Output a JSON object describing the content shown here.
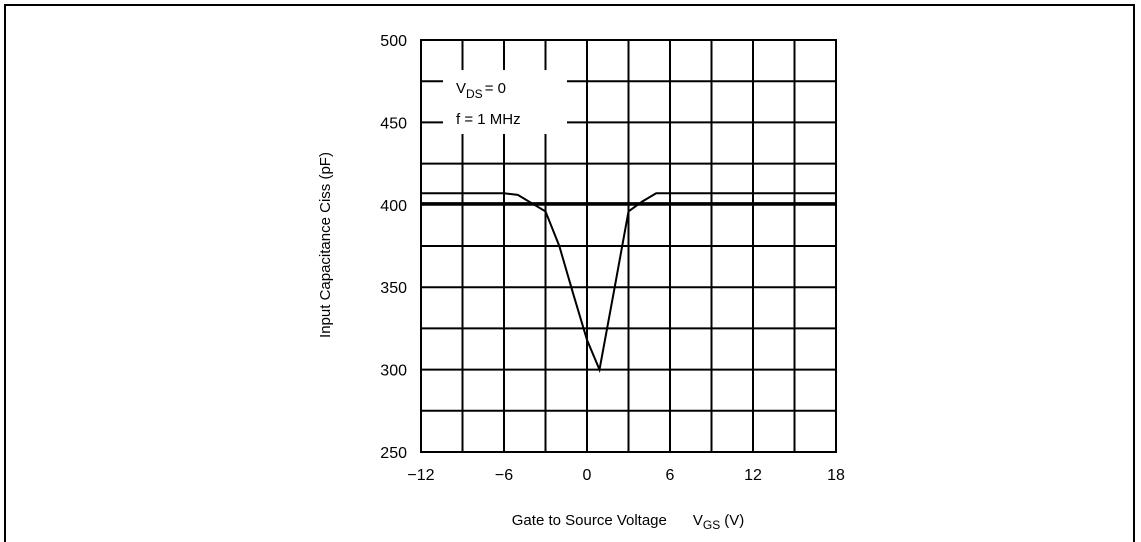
{
  "chart_data": {
    "type": "line",
    "title": "",
    "xlabel": "Gate to Source Voltage",
    "xlabel_symbol": "V",
    "xlabel_subscript": "GS",
    "xlabel_unit": "(V)",
    "ylabel": "Input Capacitance  Ciss (pF)",
    "xlim": [
      -12,
      18
    ],
    "ylim": [
      250,
      500
    ],
    "xticks": [
      -12,
      -6,
      0,
      6,
      12,
      18
    ],
    "xtick_labels": [
      "−12",
      "−6",
      "0",
      "6",
      "12",
      "18"
    ],
    "yticks": [
      250,
      300,
      350,
      400,
      450,
      500
    ],
    "ytick_labels": [
      "250",
      "300",
      "350",
      "400",
      "450",
      "500"
    ],
    "grid": true,
    "annotations": {
      "line1_symbol": "V",
      "line1_subscript": "DS",
      "line1_value": "= 0",
      "line2": "f = 1 MHz"
    },
    "series": [
      {
        "x": [
          -12,
          -6,
          -5,
          -4,
          -3,
          -2,
          -1,
          0,
          0.9,
          2,
          3,
          4,
          5,
          6,
          12,
          18
        ],
        "values": [
          407,
          407,
          406,
          401,
          396,
          375,
          346,
          318,
          300,
          350,
          396,
          402,
          407,
          407,
          407,
          407
        ]
      }
    ],
    "reference_lines": [
      401
    ]
  }
}
